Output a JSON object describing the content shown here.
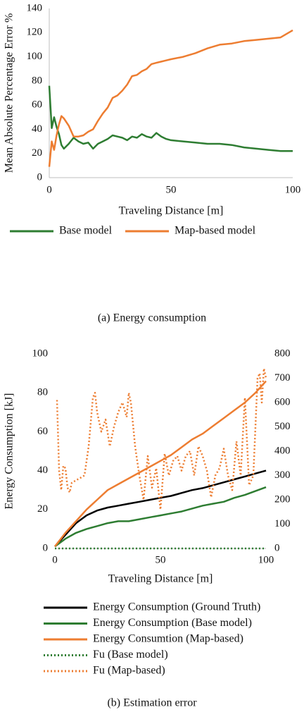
{
  "chart_data": [
    {
      "type": "line",
      "caption": "(a) Energy consumption",
      "xlabel": "Traveling Distance [m]",
      "ylabel": "Mean Absolute Percentage Error %",
      "xlim": [
        0,
        100
      ],
      "xticks": [
        0,
        50,
        100
      ],
      "ylim": [
        0,
        140
      ],
      "yticks": [
        0,
        20,
        40,
        60,
        80,
        100,
        120,
        140
      ],
      "grid": false,
      "legend": "bottom",
      "x": [
        0,
        1,
        2,
        3,
        4,
        5,
        6,
        8,
        10,
        12,
        14,
        16,
        18,
        20,
        22,
        24,
        26,
        28,
        30,
        32,
        34,
        36,
        38,
        40,
        42,
        44,
        46,
        48,
        50,
        55,
        60,
        65,
        70,
        75,
        80,
        85,
        90,
        95,
        100
      ],
      "series": [
        {
          "name": "Base model",
          "color": "#2e7d32",
          "values": [
            76,
            41,
            50,
            42,
            36,
            27,
            24,
            28,
            33,
            30,
            28,
            29,
            24,
            28,
            30,
            32,
            35,
            34,
            33,
            31,
            34,
            33,
            36,
            34,
            33,
            37,
            34,
            32,
            31,
            30,
            29,
            28,
            28,
            27,
            25,
            24,
            23,
            22,
            22
          ]
        },
        {
          "name": "Map-based model",
          "color": "#ed7d31",
          "values": [
            9,
            30,
            23,
            35,
            44,
            51,
            49,
            43,
            34,
            34,
            35,
            38,
            40,
            47,
            53,
            58,
            66,
            68,
            72,
            77,
            84,
            85,
            88,
            90,
            94,
            95,
            96,
            97,
            98,
            100,
            103,
            107,
            110,
            111,
            113,
            114,
            115,
            116,
            122
          ]
        }
      ]
    },
    {
      "type": "line",
      "caption": "(b) Estimation error",
      "xlabel": "Traveling Distance [m]",
      "ylabel": "Energy Consumption [kJ]",
      "xlim": [
        0,
        100
      ],
      "xticks": [
        0,
        50,
        100
      ],
      "ylim": [
        0,
        100
      ],
      "yticks": [
        0,
        20,
        40,
        60,
        80,
        100
      ],
      "y2lim": [
        0,
        800
      ],
      "y2ticks": [
        0,
        100,
        200,
        300,
        400,
        500,
        600,
        700,
        800
      ],
      "grid": false,
      "legend": "bottom",
      "series": [
        {
          "name": "Energy Consumption (Ground Truth)",
          "color": "#000000",
          "x": [
            0,
            5,
            10,
            15,
            20,
            25,
            30,
            35,
            40,
            45,
            50,
            55,
            60,
            65,
            70,
            75,
            80,
            85,
            90,
            95,
            100
          ],
          "values": [
            1,
            7,
            13,
            17,
            19.5,
            21,
            22,
            23,
            24,
            25,
            26,
            27,
            28.5,
            30,
            31,
            32.5,
            34,
            35.5,
            37,
            38.5,
            40
          ]
        },
        {
          "name": "Energy Consumption (Base model)",
          "color": "#2e7d32",
          "x": [
            0,
            5,
            10,
            15,
            20,
            25,
            30,
            35,
            40,
            45,
            50,
            55,
            60,
            65,
            70,
            75,
            80,
            85,
            90,
            95,
            100
          ],
          "values": [
            1,
            5,
            8,
            10,
            11.5,
            13,
            14,
            14,
            15,
            16,
            17,
            18,
            19,
            20.5,
            22,
            23,
            24,
            26,
            27.5,
            29.5,
            31.5
          ]
        },
        {
          "name": "Energy Consumtion (Map-based)",
          "color": "#ed7d31",
          "x": [
            0,
            5,
            10,
            15,
            20,
            25,
            30,
            35,
            40,
            45,
            50,
            55,
            60,
            65,
            70,
            75,
            80,
            85,
            90,
            95,
            100
          ],
          "values": [
            1,
            8,
            14,
            20,
            25,
            30,
            33,
            36,
            39,
            42,
            45,
            48,
            52,
            56,
            59,
            63,
            67,
            71,
            75,
            80,
            86
          ]
        },
        {
          "name": "Fu (Base model)",
          "color": "#2e7d32",
          "dotted": true,
          "axis": "y2",
          "x": [
            0,
            100
          ],
          "values": [
            0,
            0
          ]
        },
        {
          "name": "Fu (Map-based)",
          "color": "#ed7d31",
          "dotted": true,
          "axis": "y2",
          "x": [
            1,
            2,
            3,
            4,
            5,
            6,
            7,
            8,
            10,
            12,
            14,
            16,
            18,
            19,
            20,
            22,
            24,
            26,
            28,
            30,
            32,
            34,
            35,
            36,
            38,
            40,
            42,
            44,
            46,
            48,
            50,
            52,
            54,
            56,
            58,
            60,
            62,
            64,
            66,
            68,
            70,
            72,
            74,
            76,
            78,
            80,
            82,
            84,
            86,
            88,
            90,
            92,
            94,
            96,
            97,
            98,
            99,
            100
          ],
          "values": [
            610,
            320,
            240,
            340,
            330,
            250,
            230,
            270,
            280,
            290,
            300,
            420,
            620,
            640,
            560,
            480,
            530,
            420,
            500,
            560,
            600,
            540,
            640,
            600,
            420,
            300,
            200,
            380,
            250,
            330,
            160,
            390,
            300,
            360,
            380,
            320,
            380,
            400,
            300,
            420,
            380,
            320,
            210,
            300,
            330,
            410,
            300,
            240,
            440,
            300,
            620,
            260,
            300,
            700,
            720,
            600,
            740,
            700
          ]
        }
      ]
    }
  ]
}
